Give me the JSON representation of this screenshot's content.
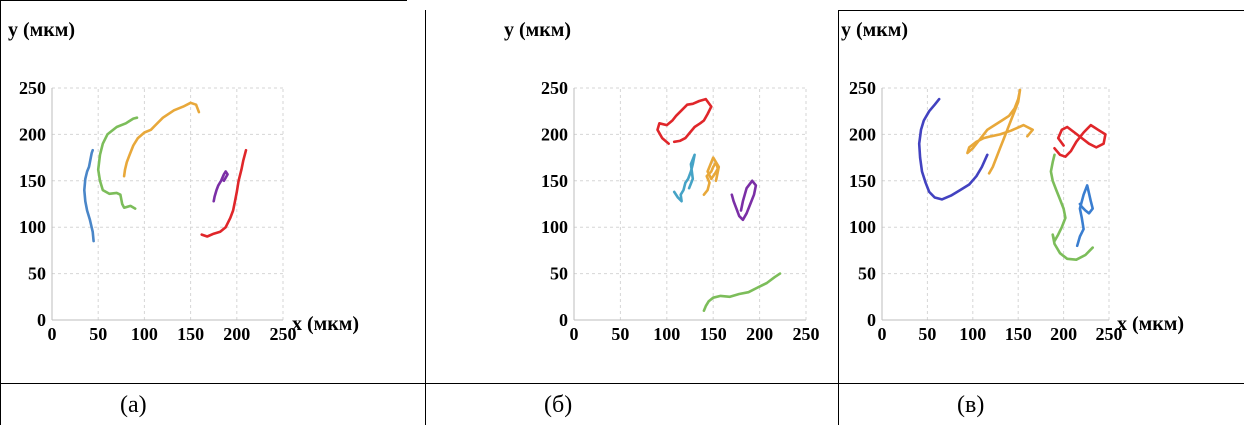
{
  "figure": {
    "panels": [
      {
        "caption": "(а)"
      },
      {
        "caption": "(б)"
      },
      {
        "caption": "(в)"
      }
    ]
  },
  "chart_data": [
    {
      "type": "line",
      "panel": "(а)",
      "xlabel": "x (мкм)",
      "ylabel": "y (мкм)",
      "xlim": [
        0,
        250
      ],
      "ylim": [
        0,
        250
      ],
      "xticks": [
        "0",
        "50",
        "100",
        "150",
        "200",
        "250"
      ],
      "yticks": [
        "0",
        "50",
        "100",
        "150",
        "200",
        "250"
      ],
      "grid": true,
      "series": [
        {
          "color": "#4a86c8",
          "x": [
            45,
            44,
            41,
            38,
            36,
            35,
            36,
            38,
            40,
            41,
            42,
            43,
            44
          ],
          "y": [
            85,
            95,
            108,
            118,
            128,
            140,
            152,
            160,
            165,
            170,
            175,
            180,
            183
          ]
        },
        {
          "color": "#7cbd5a",
          "x": [
            90,
            85,
            78,
            76,
            75,
            74,
            70,
            62,
            55,
            52,
            50,
            52,
            55,
            60,
            70,
            80,
            88,
            92
          ],
          "y": [
            120,
            123,
            121,
            125,
            130,
            135,
            137,
            136,
            140,
            150,
            162,
            178,
            190,
            200,
            208,
            212,
            217,
            218
          ]
        },
        {
          "color": "#e8a83a",
          "x": [
            78,
            79,
            81,
            84,
            88,
            93,
            100,
            107,
            112,
            120,
            132,
            142,
            150,
            156,
            159
          ],
          "y": [
            155,
            162,
            170,
            178,
            188,
            196,
            202,
            205,
            210,
            218,
            226,
            230,
            234,
            232,
            224
          ]
        },
        {
          "color": "#7b2fa6",
          "x": [
            175,
            176,
            178,
            180,
            183,
            186,
            188,
            190,
            186
          ],
          "y": [
            128,
            133,
            140,
            145,
            150,
            157,
            160,
            157,
            150
          ]
        },
        {
          "color": "#e0262a",
          "x": [
            162,
            168,
            175,
            182,
            188,
            193,
            196,
            198,
            200,
            202,
            205,
            207,
            210
          ],
          "y": [
            92,
            90,
            93,
            95,
            100,
            110,
            118,
            128,
            138,
            150,
            162,
            172,
            183
          ]
        }
      ]
    },
    {
      "type": "line",
      "panel": "(б)",
      "xlabel": "",
      "ylabel": "y (мкм)",
      "xlim": [
        0,
        250
      ],
      "ylim": [
        0,
        250
      ],
      "xticks": [
        "0",
        "50",
        "100",
        "150",
        "200",
        "250"
      ],
      "yticks": [
        "0",
        "50",
        "100",
        "150",
        "200",
        "250"
      ],
      "grid": true,
      "series": [
        {
          "color": "#e0262a",
          "x": [
            102,
            95,
            90,
            92,
            100,
            106,
            110,
            116,
            122,
            128,
            135,
            142,
            148,
            144,
            140,
            136,
            130,
            125,
            120,
            114,
            108
          ],
          "y": [
            190,
            196,
            205,
            212,
            210,
            215,
            220,
            226,
            232,
            233,
            236,
            238,
            230,
            222,
            215,
            212,
            208,
            202,
            196,
            193,
            192
          ]
        },
        {
          "color": "#45a3c6",
          "x": [
            108,
            112,
            116,
            115,
            118,
            120,
            123,
            126,
            128,
            130,
            126,
            128,
            124
          ],
          "y": [
            138,
            132,
            128,
            135,
            140,
            148,
            152,
            160,
            168,
            178,
            168,
            152,
            142
          ]
        },
        {
          "color": "#e8a83a",
          "x": [
            140,
            144,
            146,
            143,
            148,
            150,
            153,
            155,
            152,
            148,
            144,
            150,
            156,
            153
          ],
          "y": [
            135,
            140,
            148,
            155,
            160,
            165,
            170,
            163,
            158,
            152,
            160,
            175,
            165,
            150
          ]
        },
        {
          "color": "#7b2fa6",
          "x": [
            170,
            172,
            175,
            178,
            182,
            186,
            190,
            194,
            196,
            192,
            186,
            182,
            180
          ],
          "y": [
            135,
            128,
            120,
            112,
            108,
            115,
            125,
            135,
            145,
            150,
            142,
            128,
            118
          ]
        },
        {
          "color": "#7cbd5a",
          "x": [
            140,
            142,
            145,
            150,
            158,
            168,
            178,
            188,
            198,
            208,
            216,
            222
          ],
          "y": [
            10,
            15,
            20,
            24,
            26,
            25,
            28,
            30,
            35,
            40,
            46,
            50
          ]
        }
      ]
    },
    {
      "type": "line",
      "panel": "(в)",
      "xlabel": "x (мкм)",
      "ylabel": "y (мкм)",
      "xlim": [
        0,
        250
      ],
      "ylim": [
        0,
        250
      ],
      "xticks": [
        "0",
        "50",
        "100",
        "150",
        "200",
        "250"
      ],
      "yticks": [
        "0",
        "50",
        "100",
        "150",
        "200",
        "250"
      ],
      "grid": true,
      "series": [
        {
          "color": "#4242c0",
          "x": [
            63,
            58,
            52,
            46,
            43,
            41,
            42,
            44,
            48,
            52,
            58,
            66,
            76,
            86,
            96,
            104,
            110,
            116
          ],
          "y": [
            238,
            232,
            225,
            215,
            205,
            190,
            175,
            160,
            148,
            138,
            132,
            130,
            134,
            140,
            146,
            155,
            165,
            178
          ]
        },
        {
          "color": "#e8a83a",
          "x": [
            118,
            122,
            126,
            130,
            134,
            138,
            142,
            146,
            150,
            152,
            150,
            146,
            140,
            132,
            124,
            116,
            108,
            100,
            94,
            96,
            104,
            112,
            120,
            130,
            142,
            156,
            166,
            160
          ],
          "y": [
            158,
            165,
            175,
            185,
            195,
            205,
            215,
            225,
            235,
            248,
            238,
            228,
            220,
            215,
            210,
            205,
            195,
            185,
            180,
            186,
            192,
            196,
            198,
            200,
            204,
            210,
            205,
            198
          ]
        },
        {
          "color": "#e0262a",
          "x": [
            190,
            196,
            202,
            208,
            214,
            222,
            230,
            238,
            246,
            244,
            236,
            228,
            220,
            212,
            204,
            198,
            194,
            200
          ],
          "y": [
            185,
            178,
            176,
            182,
            192,
            202,
            210,
            205,
            200,
            190,
            186,
            190,
            196,
            202,
            208,
            205,
            196,
            188
          ]
        },
        {
          "color": "#7cbd5a",
          "x": [
            190,
            188,
            186,
            188,
            192,
            196,
            200,
            202,
            198,
            194,
            190,
            188,
            190,
            196,
            204,
            214,
            224,
            232
          ],
          "y": [
            178,
            170,
            160,
            150,
            140,
            130,
            120,
            110,
            100,
            92,
            85,
            92,
            82,
            72,
            66,
            65,
            70,
            78
          ]
        },
        {
          "color": "#3a7ed0",
          "x": [
            215,
            218,
            222,
            220,
            218,
            222,
            226,
            230,
            232,
            228,
            224,
            220,
            218
          ],
          "y": [
            80,
            90,
            98,
            110,
            120,
            135,
            145,
            128,
            120,
            115,
            118,
            122,
            125
          ]
        }
      ]
    }
  ]
}
